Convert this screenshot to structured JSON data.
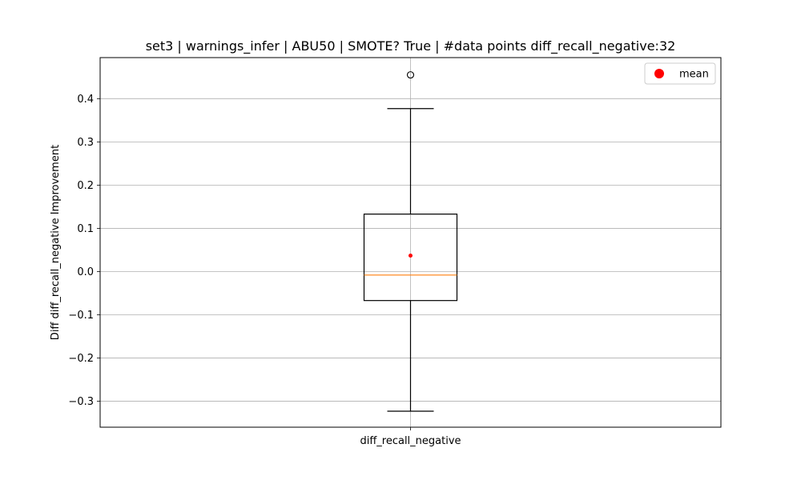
{
  "chart_data": {
    "type": "box",
    "title": "set3 | warnings_infer | ABU50 | SMOTE? True | #data points diff_recall_negative:32",
    "xlabel": "",
    "ylabel": "Diff diff_recall_negative Improvement",
    "categories": [
      "diff_recall_negative"
    ],
    "ylim": [
      -0.36,
      0.495
    ],
    "yticks": [
      -0.3,
      -0.2,
      -0.1,
      0.0,
      0.1,
      0.2,
      0.3,
      0.4
    ],
    "ytick_labels": [
      "−0.3",
      "−0.2",
      "−0.1",
      "0.0",
      "0.1",
      "0.2",
      "0.3",
      "0.4"
    ],
    "grid": true,
    "legend": {
      "placement": "top-right",
      "entries": [
        {
          "label": "mean",
          "color": "#ff0000"
        }
      ]
    },
    "boxes": [
      {
        "name": "diff_recall_negative",
        "whisker_low": -0.323,
        "q1": -0.067,
        "median": -0.008,
        "q3": 0.133,
        "whisker_high": 0.377,
        "mean": 0.037,
        "outliers": [
          0.455
        ]
      }
    ],
    "colors": {
      "box": "#000000",
      "median": "#ff7f0e",
      "mean": "#ff0000",
      "grid": "#b0b0b0"
    }
  }
}
